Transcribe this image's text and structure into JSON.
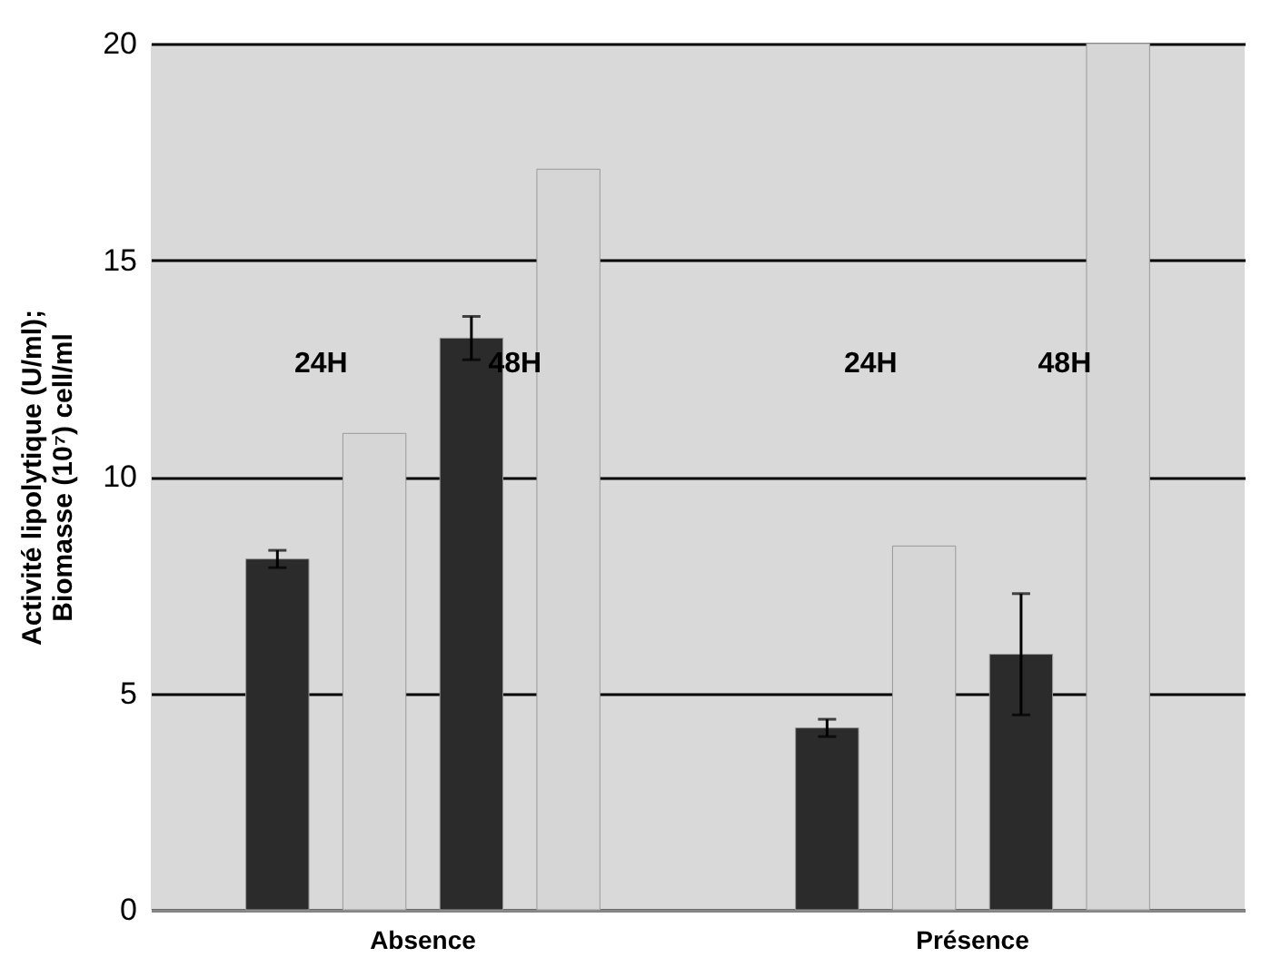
{
  "chart_data": {
    "type": "bar",
    "ylabel": "Activité lipolytique (U/ml);\nBiomasse (10⁷)  cell/ml",
    "categories": [
      "Absence",
      "Présence"
    ],
    "series": [
      {
        "color": "#2b2b2b",
        "values": [
          8.1,
          4.2
        ],
        "errors": [
          0.2,
          0.2
        ]
      },
      {
        "color": "#d6d6d6",
        "values": [
          11,
          8.4
        ]
      },
      {
        "color": "#2b2b2b",
        "values": [
          13.2,
          5.9
        ],
        "errors": [
          0.5,
          1.4
        ]
      },
      {
        "color": "#d6d6d6",
        "values": [
          17.1,
          20
        ]
      }
    ],
    "annotations": [
      "24H",
      "48H",
      "24H",
      "48H"
    ],
    "ylim": [
      0,
      20
    ],
    "yticks": [
      0,
      5,
      10,
      15,
      20
    ],
    "grid": "y"
  }
}
